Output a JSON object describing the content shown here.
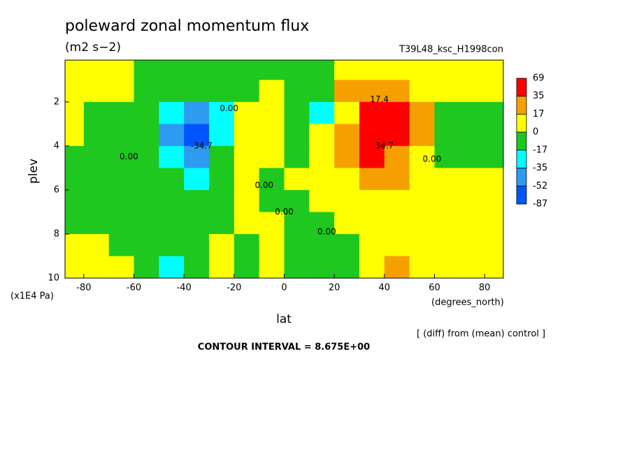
{
  "chart_data": {
    "type": "contour",
    "title": "poleward zonal momentum flux",
    "subtitle": "(m2 s−2)",
    "run_label": "T39L48_ksc_H1998con",
    "xlabel": "lat",
    "ylabel": "plev",
    "x_unit": "(degrees_north)",
    "y_unit": "(x1E4 Pa)",
    "note": "[ (diff) from (mean) control ]",
    "footer": "CONTOUR INTERVAL = 8.675E+00",
    "xlim": [
      -87.5,
      87.5
    ],
    "ylim": [
      10,
      0.1
    ],
    "xticks": [
      -80,
      -60,
      -40,
      -20,
      0,
      20,
      40,
      60,
      80
    ],
    "yticks": [
      2,
      4,
      6,
      8,
      10
    ],
    "levels": [
      69,
      35,
      17,
      0,
      -17,
      -35,
      -52,
      -87
    ],
    "colors": [
      "#ff0000",
      "#f5a000",
      "#ffff00",
      "#1ec81e",
      "#00ffff",
      "#2d9bf0",
      "#0055ff"
    ],
    "lat": [
      -85,
      -75,
      -65,
      -55,
      -45,
      -35,
      -25,
      -15,
      -5,
      5,
      15,
      25,
      35,
      45,
      55,
      65,
      75,
      85
    ],
    "plev": [
      0.5,
      1.5,
      2.5,
      3.5,
      4.5,
      5.5,
      6.5,
      7.5,
      8.5,
      9.5
    ],
    "z": [
      [
        5,
        5,
        5,
        -5,
        -5,
        -5,
        -5,
        -5,
        -5,
        -5,
        -5,
        5,
        5,
        5,
        5,
        5,
        5,
        5
      ],
      [
        5,
        5,
        5,
        -5,
        -10,
        -10,
        -5,
        -5,
        5,
        -5,
        -5,
        20,
        30,
        20,
        5,
        5,
        5,
        5
      ],
      [
        5,
        -5,
        -5,
        -10,
        -30,
        -45,
        -20,
        5,
        5,
        -5,
        -20,
        15,
        40,
        40,
        20,
        -5,
        -5,
        -5
      ],
      [
        5,
        -5,
        -5,
        -15,
        -40,
        -60,
        -25,
        5,
        5,
        -5,
        5,
        20,
        60,
        45,
        20,
        -5,
        -5,
        -5
      ],
      [
        -5,
        -5,
        -5,
        -10,
        -25,
        -40,
        -15,
        5,
        5,
        -5,
        5,
        20,
        40,
        30,
        15,
        -5,
        -5,
        -5
      ],
      [
        -5,
        -5,
        -5,
        -5,
        -10,
        -20,
        -5,
        5,
        -5,
        5,
        5,
        10,
        20,
        20,
        10,
        5,
        5,
        5
      ],
      [
        -5,
        -5,
        -5,
        -5,
        -5,
        -5,
        -5,
        5,
        -5,
        -5,
        5,
        5,
        5,
        5,
        5,
        5,
        5,
        5
      ],
      [
        -5,
        -5,
        -5,
        -5,
        -5,
        -5,
        -5,
        5,
        5,
        -5,
        -5,
        5,
        5,
        5,
        5,
        5,
        5,
        5
      ],
      [
        5,
        5,
        -5,
        -5,
        -5,
        -5,
        5,
        -5,
        5,
        -5,
        -5,
        -5,
        5,
        5,
        5,
        5,
        5,
        5
      ],
      [
        5,
        5,
        5,
        -5,
        -20,
        -5,
        5,
        -5,
        5,
        -5,
        -5,
        -5,
        5,
        20,
        5,
        5,
        5,
        5
      ]
    ],
    "contour_labels": [
      {
        "value": 0,
        "label": "0.00",
        "lat": -62,
        "plev": 4.5
      },
      {
        "value": -34.7,
        "lat": -33,
        "plev": 4.0
      },
      {
        "value": 0,
        "label": "0.00",
        "lat": -22,
        "plev": 2.3
      },
      {
        "value": 17.4,
        "lat": 38,
        "plev": 1.9
      },
      {
        "value": 34.7,
        "lat": 40,
        "plev": 4.0
      },
      {
        "value": 0,
        "label": "0.00",
        "lat": -8,
        "plev": 5.8
      },
      {
        "value": 0,
        "label": "0.00",
        "lat": 0,
        "plev": 7.0
      },
      {
        "value": 0,
        "label": "0.00",
        "lat": 17,
        "plev": 7.9
      },
      {
        "value": 0,
        "label": "0.00",
        "lat": 59,
        "plev": 4.6
      }
    ]
  }
}
